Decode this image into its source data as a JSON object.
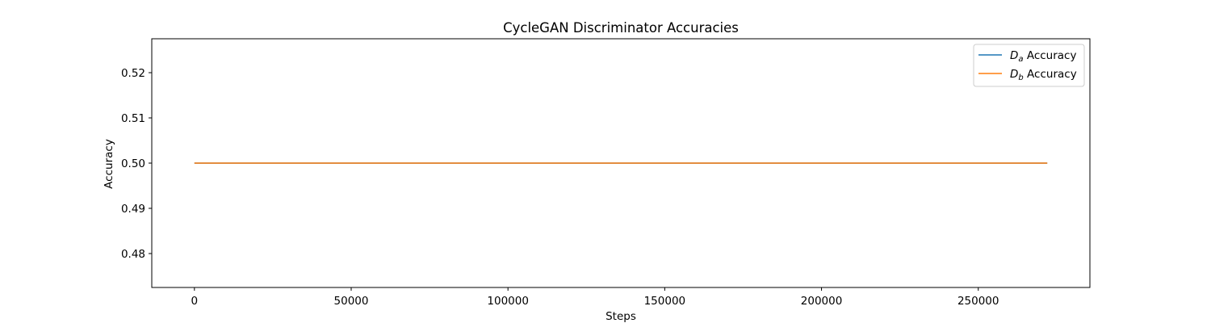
{
  "chart_data": {
    "type": "line",
    "title": "CycleGAN Discriminator Accuracies",
    "xlabel": "Steps",
    "ylabel": "Accuracy",
    "xlim": [
      -13600,
      285600
    ],
    "ylim": [
      0.4725,
      0.5275
    ],
    "xticks": [
      0,
      50000,
      100000,
      150000,
      200000,
      250000
    ],
    "yticks": [
      0.48,
      0.49,
      0.5,
      0.51,
      0.52
    ],
    "ytick_labels": [
      "0.48",
      "0.49",
      "0.50",
      "0.51",
      "0.52"
    ],
    "grid": false,
    "legend_position": "top-right",
    "series": [
      {
        "name_base": "D",
        "name_sub": "a",
        "name_rest": " Accuracy",
        "color": "#1f77b4",
        "x": [
          0,
          272000
        ],
        "y": [
          0.5,
          0.5
        ]
      },
      {
        "name_base": "D",
        "name_sub": "b",
        "name_rest": " Accuracy",
        "color": "#ff7f0e",
        "x": [
          0,
          272000
        ],
        "y": [
          0.5,
          0.5
        ]
      }
    ]
  }
}
